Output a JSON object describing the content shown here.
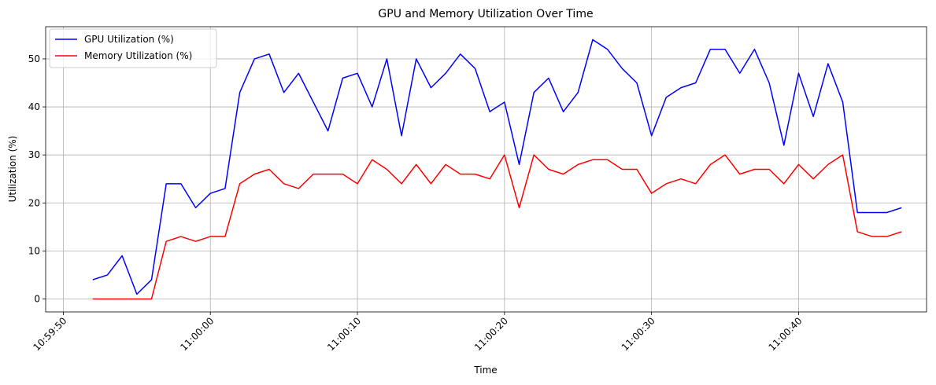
{
  "chart_data": {
    "type": "line",
    "title": "GPU and Memory Utilization Over Time",
    "xlabel": "Time",
    "ylabel": "Utilization (%)",
    "x_ticks": [
      "10:59:50",
      "11:00:00",
      "11:00:10",
      "11:00:20",
      "11:00:30",
      "11:00:40"
    ],
    "x_tick_seconds": [
      -10,
      0,
      10,
      20,
      30,
      40
    ],
    "y_ticks": [
      0,
      10,
      20,
      30,
      40,
      50
    ],
    "xlim_label": [
      "10:59:49",
      "11:00:48"
    ],
    "xlim_seconds": [
      -11.2,
      48.7
    ],
    "ylim": [
      -2.7,
      56.7
    ],
    "grid": true,
    "legend_position": "top-left",
    "x": [
      "10:59:52",
      "10:59:53",
      "10:59:54",
      "10:59:55",
      "10:59:56",
      "10:59:57",
      "10:59:58",
      "10:59:59",
      "11:00:00",
      "11:00:01",
      "11:00:02",
      "11:00:03",
      "11:00:04",
      "11:00:05",
      "11:00:06",
      "11:00:07",
      "11:00:08",
      "11:00:09",
      "11:00:10",
      "11:00:11",
      "11:00:12",
      "11:00:13",
      "11:00:14",
      "11:00:15",
      "11:00:16",
      "11:00:17",
      "11:00:18",
      "11:00:19",
      "11:00:20",
      "11:00:21",
      "11:00:22",
      "11:00:23",
      "11:00:24",
      "11:00:25",
      "11:00:26",
      "11:00:27",
      "11:00:28",
      "11:00:29",
      "11:00:30",
      "11:00:31",
      "11:00:32",
      "11:00:33",
      "11:00:34",
      "11:00:35",
      "11:00:36",
      "11:00:37",
      "11:00:38",
      "11:00:39",
      "11:00:40",
      "11:00:41",
      "11:00:42",
      "11:00:43",
      "11:00:44",
      "11:00:45",
      "11:00:46",
      "11:00:47"
    ],
    "x_seconds": [
      -8,
      -7,
      -6,
      -5,
      -4,
      -3,
      -2,
      -1,
      0,
      1,
      2,
      3,
      4,
      5,
      6,
      7,
      8,
      9,
      10,
      11,
      12,
      13,
      14,
      15,
      16,
      17,
      18,
      19,
      20,
      21,
      22,
      23,
      24,
      25,
      26,
      27,
      28,
      29,
      30,
      31,
      32,
      33,
      34,
      35,
      36,
      37,
      38,
      39,
      40,
      41,
      42,
      43,
      44,
      45,
      46,
      47
    ],
    "series": [
      {
        "name": "GPU Utilization (%)",
        "color": "#0000ff",
        "values": [
          4,
          5,
          9,
          1,
          4,
          24,
          24,
          19,
          22,
          23,
          43,
          50,
          51,
          43,
          47,
          41,
          35,
          46,
          47,
          40,
          50,
          34,
          50,
          44,
          47,
          51,
          48,
          39,
          41,
          28,
          43,
          46,
          39,
          43,
          54,
          52,
          48,
          45,
          34,
          42,
          44,
          45,
          52,
          52,
          47,
          52,
          45,
          32,
          47,
          38,
          49,
          41,
          18,
          18,
          18,
          19
        ]
      },
      {
        "name": "Memory Utilization (%)",
        "color": "#ff0000",
        "values": [
          0,
          0,
          0,
          0,
          0,
          12,
          13,
          12,
          13,
          13,
          24,
          26,
          27,
          24,
          23,
          26,
          26,
          26,
          24,
          29,
          27,
          24,
          28,
          24,
          28,
          26,
          26,
          25,
          30,
          19,
          30,
          27,
          26,
          28,
          29,
          29,
          27,
          27,
          22,
          24,
          25,
          24,
          28,
          30,
          26,
          27,
          27,
          24,
          28,
          25,
          28,
          30,
          14,
          13,
          13,
          14
        ]
      }
    ]
  }
}
